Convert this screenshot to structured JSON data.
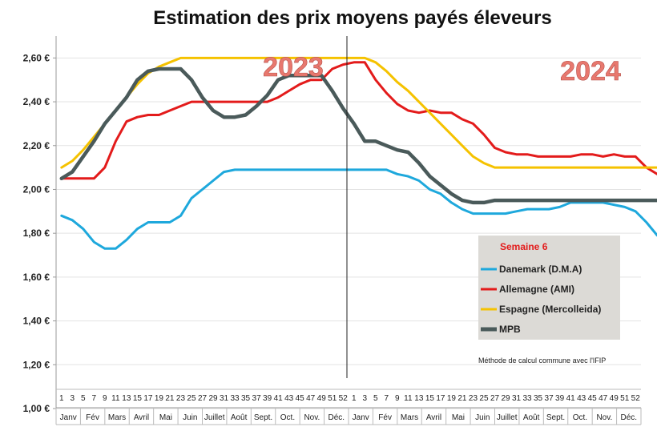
{
  "chart_data": {
    "type": "line",
    "title": "Estimation des prix moyens payés éleveurs",
    "ylim": [
      1.0,
      2.7
    ],
    "yticks": [
      "1,00 €",
      "1,20 €",
      "1,40 €",
      "1,60 €",
      "1,80 €",
      "2,00 €",
      "2,20 €",
      "2,40 €",
      "2,60 €"
    ],
    "ytick_values": [
      1.0,
      1.2,
      1.4,
      1.6,
      1.8,
      2.0,
      2.2,
      2.4,
      2.6
    ],
    "x_week_labels": [
      "1",
      "3",
      "5",
      "7",
      "9",
      "11",
      "13",
      "15",
      "17",
      "19",
      "21",
      "23",
      "25",
      "27",
      "29",
      "31",
      "33",
      "35",
      "37",
      "39",
      "41",
      "43",
      "45",
      "47",
      "49",
      "51",
      "52",
      "1",
      "3",
      "5",
      "7",
      "9",
      "11",
      "13",
      "15",
      "17",
      "19",
      "21",
      "23",
      "25",
      "27",
      "29",
      "31",
      "33",
      "35",
      "37",
      "39",
      "41",
      "43",
      "45",
      "47",
      "49",
      "51",
      "52"
    ],
    "months": [
      "Janv",
      "Fév",
      "Mars",
      "Avril",
      "Mai",
      "Juin",
      "Juillet",
      "Août",
      "Sept.",
      "Oct.",
      "Nov.",
      "Déc.",
      "Janv",
      "Fév",
      "Mars",
      "Avril",
      "Mai",
      "Juin",
      "Juillet",
      "Août",
      "Sept.",
      "Oct.",
      "Nov.",
      "Déc."
    ],
    "year_labels": [
      "2023",
      "2024"
    ],
    "legend_title": "Semaine 6",
    "note": "Méthode de calcul commune avec l'IFIP",
    "series": [
      {
        "name": "Danemark (D.M.A)",
        "color": "#1ea8dc",
        "x": [
          1,
          2,
          3,
          4,
          5,
          6,
          7,
          8,
          9,
          10,
          11,
          12,
          13,
          14,
          15,
          16,
          17,
          18,
          19,
          20,
          21,
          22,
          23,
          24,
          25,
          26,
          27,
          28,
          29,
          30,
          31,
          32,
          33,
          34,
          35,
          36,
          37,
          38,
          39,
          40,
          41,
          42,
          43,
          44,
          45,
          46,
          47,
          48,
          49,
          50,
          51,
          52,
          53,
          54,
          55,
          56,
          57,
          58
        ],
        "values": [
          1.88,
          1.86,
          1.82,
          1.76,
          1.73,
          1.73,
          1.77,
          1.82,
          1.85,
          1.85,
          1.85,
          1.88,
          1.96,
          2.0,
          2.04,
          2.08,
          2.09,
          2.09,
          2.09,
          2.09,
          2.09,
          2.09,
          2.09,
          2.09,
          2.09,
          2.09,
          2.09,
          2.09,
          2.09,
          2.09,
          2.09,
          2.07,
          2.06,
          2.04,
          2.0,
          1.98,
          1.94,
          1.91,
          1.89,
          1.89,
          1.89,
          1.89,
          1.9,
          1.91,
          1.91,
          1.91,
          1.92,
          1.94,
          1.94,
          1.94,
          1.94,
          1.93,
          1.92,
          1.9,
          1.85,
          1.79,
          1.79,
          1.79
        ]
      },
      {
        "name": "Allemagne (AMI)",
        "color": "#e31b1b",
        "x": [
          1,
          2,
          3,
          4,
          5,
          6,
          7,
          8,
          9,
          10,
          11,
          12,
          13,
          14,
          15,
          16,
          17,
          18,
          19,
          20,
          21,
          22,
          23,
          24,
          25,
          26,
          27,
          28,
          29,
          30,
          31,
          32,
          33,
          34,
          35,
          36,
          37,
          38,
          39,
          40,
          41,
          42,
          43,
          44,
          45,
          46,
          47,
          48,
          49,
          50,
          51,
          52,
          53,
          54,
          55,
          56,
          57,
          58
        ],
        "values": [
          2.05,
          2.05,
          2.05,
          2.05,
          2.1,
          2.22,
          2.31,
          2.33,
          2.34,
          2.34,
          2.36,
          2.38,
          2.4,
          2.4,
          2.4,
          2.4,
          2.4,
          2.4,
          2.4,
          2.4,
          2.42,
          2.45,
          2.48,
          2.5,
          2.5,
          2.55,
          2.57,
          2.58,
          2.58,
          2.5,
          2.44,
          2.39,
          2.36,
          2.35,
          2.36,
          2.35,
          2.35,
          2.32,
          2.3,
          2.25,
          2.19,
          2.17,
          2.16,
          2.16,
          2.15,
          2.15,
          2.15,
          2.15,
          2.16,
          2.16,
          2.15,
          2.16,
          2.15,
          2.15,
          2.1,
          2.07,
          2.07,
          2.16
        ]
      },
      {
        "name": "Espagne (Mercolleida)",
        "color": "#f5c200",
        "x": [
          1,
          2,
          3,
          4,
          5,
          6,
          7,
          8,
          9,
          10,
          11,
          12,
          13,
          14,
          15,
          16,
          17,
          18,
          19,
          20,
          21,
          22,
          23,
          24,
          25,
          26,
          27,
          28,
          29,
          30,
          31,
          32,
          33,
          34,
          35,
          36,
          37,
          38,
          39,
          40,
          41,
          42,
          43,
          44,
          45,
          46,
          47,
          48,
          49,
          50,
          51,
          52,
          53,
          54,
          55,
          56,
          57,
          58
        ],
        "values": [
          2.1,
          2.13,
          2.18,
          2.24,
          2.3,
          2.36,
          2.42,
          2.48,
          2.53,
          2.56,
          2.58,
          2.6,
          2.6,
          2.6,
          2.6,
          2.6,
          2.6,
          2.6,
          2.6,
          2.6,
          2.6,
          2.6,
          2.6,
          2.6,
          2.6,
          2.6,
          2.6,
          2.6,
          2.6,
          2.58,
          2.54,
          2.49,
          2.45,
          2.4,
          2.35,
          2.3,
          2.25,
          2.2,
          2.15,
          2.12,
          2.1,
          2.1,
          2.1,
          2.1,
          2.1,
          2.1,
          2.1,
          2.1,
          2.1,
          2.1,
          2.1,
          2.1,
          2.1,
          2.1,
          2.1,
          2.1,
          2.1,
          2.1
        ]
      },
      {
        "name": "MPB",
        "color": "#4a5a5a",
        "x": [
          1,
          2,
          3,
          4,
          5,
          6,
          7,
          8,
          9,
          10,
          11,
          12,
          13,
          14,
          15,
          16,
          17,
          18,
          19,
          20,
          21,
          22,
          23,
          24,
          25,
          26,
          27,
          28,
          29,
          30,
          31,
          32,
          33,
          34,
          35,
          36,
          37,
          38,
          39,
          40,
          41,
          42,
          43,
          44,
          45,
          46,
          47,
          48,
          49,
          50,
          51,
          52,
          53,
          54,
          55,
          56,
          57,
          58
        ],
        "values": [
          2.05,
          2.08,
          2.15,
          2.22,
          2.3,
          2.36,
          2.42,
          2.5,
          2.54,
          2.55,
          2.55,
          2.55,
          2.5,
          2.42,
          2.36,
          2.33,
          2.33,
          2.34,
          2.38,
          2.43,
          2.5,
          2.52,
          2.52,
          2.52,
          2.52,
          2.45,
          2.37,
          2.3,
          2.22,
          2.22,
          2.2,
          2.18,
          2.17,
          2.12,
          2.06,
          2.02,
          1.98,
          1.95,
          1.94,
          1.94,
          1.95,
          1.95,
          1.95,
          1.95,
          1.95,
          1.95,
          1.95,
          1.95,
          1.95,
          1.95,
          1.95,
          1.95,
          1.95,
          1.95,
          1.95,
          1.95,
          1.96,
          1.96
        ]
      }
    ],
    "grid": "horizontal",
    "legend_position": "bottom-right"
  }
}
